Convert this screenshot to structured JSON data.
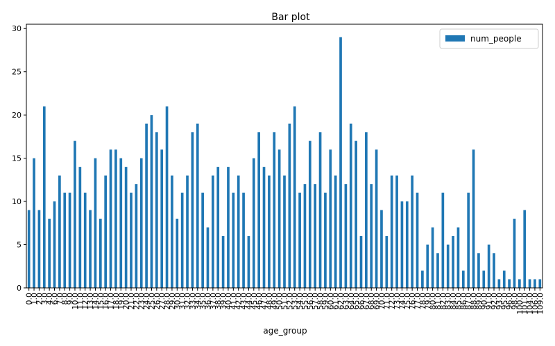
{
  "chart_data": {
    "type": "bar",
    "title": "Bar plot",
    "x_label": "age_group",
    "categories": [
      "0.0",
      "1.0",
      "2.0",
      "3.0",
      "4.0",
      "6.0",
      "7.0",
      "8.0",
      "9.0",
      "10.0",
      "11.0",
      "12.0",
      "13.0",
      "14.0",
      "15.0",
      "16.0",
      "17.0",
      "18.0",
      "19.0",
      "20.0",
      "21.0",
      "22.0",
      "23.0",
      "24.0",
      "25.0",
      "26.0",
      "27.0",
      "28.0",
      "29.0",
      "30.0",
      "31.0",
      "32.0",
      "33.0",
      "34.0",
      "35.0",
      "36.0",
      "37.0",
      "38.0",
      "39.0",
      "40.0",
      "41.0",
      "42.0",
      "43.0",
      "44.0",
      "45.0",
      "46.0",
      "47.0",
      "48.0",
      "49.0",
      "50.0",
      "51.0",
      "52.0",
      "53.0",
      "54.0",
      "55.0",
      "56.0",
      "57.0",
      "58.0",
      "59.0",
      "60.0",
      "61.0",
      "62.0",
      "63.0",
      "64.0",
      "65.0",
      "66.0",
      "67.0",
      "68.0",
      "69.0",
      "70.0",
      "71.0",
      "72.0",
      "73.0",
      "74.0",
      "75.0",
      "76.0",
      "77.0",
      "78.0",
      "79.0",
      "80.0",
      "81.0",
      "82.0",
      "83.0",
      "84.0",
      "85.0",
      "86.0",
      "87.0",
      "88.0",
      "89.0",
      "90.0",
      "91.0",
      "92.0",
      "93.0",
      "95.0",
      "96.0",
      "98.0",
      "100.0",
      "101.0",
      "104.0",
      "106.0",
      "109.0"
    ],
    "series": [
      {
        "name": "num_people",
        "color": "#1f77b4",
        "values": [
          9,
          15,
          9,
          21,
          8,
          10,
          13,
          11,
          11,
          17,
          14,
          11,
          9,
          15,
          8,
          13,
          16,
          16,
          15,
          14,
          11,
          12,
          15,
          19,
          20,
          18,
          16,
          21,
          13,
          8,
          11,
          13,
          18,
          19,
          11,
          7,
          13,
          14,
          6,
          14,
          11,
          13,
          11,
          6,
          15,
          18,
          14,
          13,
          18,
          16,
          13,
          19,
          21,
          11,
          12,
          17,
          12,
          18,
          11,
          16,
          13,
          29,
          12,
          19,
          17,
          6,
          18,
          12,
          16,
          9,
          6,
          13,
          13,
          10,
          10,
          13,
          11,
          2,
          5,
          7,
          4,
          11,
          5,
          6,
          7,
          2,
          11,
          16,
          4,
          2,
          5,
          4,
          1,
          2,
          1,
          8,
          1,
          9,
          1,
          1,
          1
        ]
      }
    ],
    "ylim": [
      0,
      30.5
    ],
    "yticks": [
      0,
      5,
      10,
      15,
      20,
      25,
      30
    ],
    "legend": "upper right"
  }
}
